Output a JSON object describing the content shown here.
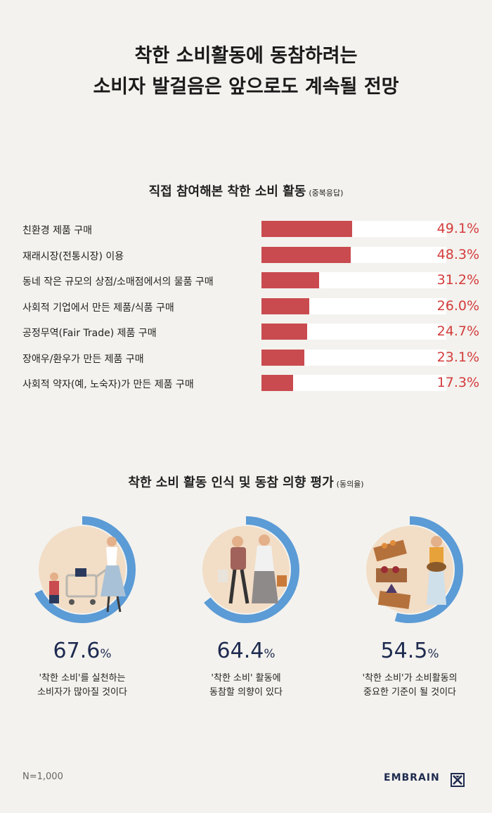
{
  "title": {
    "line1": "착한 소비활동에 동참하려는",
    "line2": "소비자 발걸음은 앞으로도 계속될 전망"
  },
  "section1": {
    "title": "직접 참여해본 착한 소비 활동",
    "note": "(중복응답)"
  },
  "section2": {
    "title": "착한 소비 활동 인식 및 동참 의향 평가",
    "note": "(동의율)"
  },
  "footer": {
    "n": "N=1,000",
    "brand": "EMBRAIN"
  },
  "colors": {
    "bar": "#c94b4f",
    "value": "#d43c3c",
    "ring": "#5b9bd6",
    "number": "#1e2a4f"
  },
  "icons": [
    "shopping-family-illustration",
    "walking-couple-illustration",
    "market-vendor-illustration",
    "embrain-logo-icon"
  ],
  "chart_data": [
    {
      "type": "bar",
      "orientation": "horizontal",
      "categories": [
        "친환경 제품 구매",
        "재래시장(전통시장) 이용",
        "동네 작은 규모의 상점/소매점에서의 물품 구매",
        "사회적 기업에서 만든 제품/식품 구매",
        "공정무역(Fair Trade) 제품 구매",
        "장애우/환우가 만든 제품 구매",
        "사회적 약자(예, 노숙자)가 만든 제품 구매"
      ],
      "values": [
        49.1,
        48.3,
        31.2,
        26.0,
        24.7,
        23.1,
        17.3
      ],
      "labels": [
        "49.1%",
        "48.3%",
        "31.2%",
        "26.0%",
        "24.7%",
        "23.1%",
        "17.3%"
      ],
      "xlim": [
        0,
        100
      ]
    },
    {
      "type": "pie",
      "style": "donut-progress",
      "items": [
        {
          "value": 67.6,
          "number": "67.6",
          "unit": "%",
          "line1": "'착한 소비'를 실천하는",
          "line2": "소비자가 많아질 것이다"
        },
        {
          "value": 64.4,
          "number": "64.4",
          "unit": "%",
          "line1": "'착한 소비' 활동에",
          "line2": "동참할 의향이 있다"
        },
        {
          "value": 54.5,
          "number": "54.5",
          "unit": "%",
          "line1": "'착한 소비'가 소비활동의",
          "line2": "중요한 기준이 될 것이다"
        }
      ]
    }
  ]
}
